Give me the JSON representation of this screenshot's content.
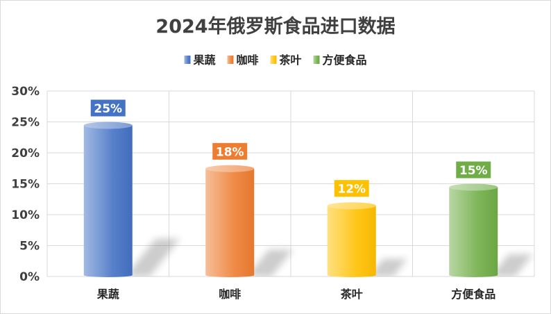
{
  "chart_data": {
    "type": "bar",
    "title": "2024年俄罗斯食品进口数据",
    "categories": [
      "果蔬",
      "咖啡",
      "茶叶",
      "方便食品"
    ],
    "values": [
      25,
      18,
      12,
      15
    ],
    "data_labels": [
      "25%",
      "18%",
      "12%",
      "15%"
    ],
    "ylim": [
      0,
      30
    ],
    "yticks": [
      0,
      5,
      10,
      15,
      20,
      25,
      30
    ],
    "ytick_labels": [
      "0%",
      "5%",
      "10%",
      "15%",
      "20%",
      "25%",
      "30%"
    ],
    "legend": {
      "placement": "top",
      "entries": [
        "果蔬",
        "咖啡",
        "茶叶",
        "方便食品"
      ]
    },
    "colors": [
      "#4472C4",
      "#ED7D31",
      "#FFC000",
      "#70AD47"
    ],
    "grid": {
      "horizontal": true,
      "vertical": true
    }
  }
}
